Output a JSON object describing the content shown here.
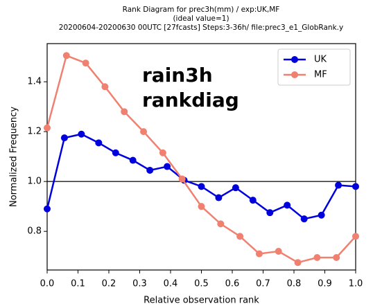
{
  "chart_data": {
    "type": "line",
    "title": [
      "Rank Diagram for prec3h(mm) / exp:UK,MF",
      "(ideal value=1)",
      "20200604-20200630 00UTC [27fcasts] Steps:3-36h/ file:prec3_e1_GlobRank.y"
    ],
    "annotation": [
      "rain3h",
      "rankdiag"
    ],
    "xlabel": "Relative observation rank",
    "ylabel": "Normalized Frequency",
    "xlim": [
      0,
      1
    ],
    "ylim": [
      0.645,
      1.553
    ],
    "xticks": [
      {
        "value": 0,
        "label": "0.0"
      },
      0.1,
      0.2,
      0.3,
      0.4,
      0.5,
      0.6,
      0.7,
      0.8,
      0.9,
      {
        "value": 1,
        "label": "1.0"
      }
    ],
    "yticks": [
      0.8,
      {
        "value": 1,
        "label": "1.0"
      },
      1.2,
      1.4
    ],
    "reference_line": 1,
    "legend": "upper right",
    "series": [
      {
        "name": "UK",
        "color": "#0000dd",
        "x": [
          0,
          0.056,
          0.111,
          0.167,
          0.222,
          0.278,
          0.333,
          0.389,
          0.444,
          0.5,
          0.556,
          0.611,
          0.667,
          0.722,
          0.778,
          0.833,
          0.889,
          0.944,
          1
        ],
        "values": [
          0.89,
          1.175,
          1.19,
          1.155,
          1.115,
          1.085,
          1.045,
          1.06,
          1.005,
          0.98,
          0.935,
          0.975,
          0.925,
          0.875,
          0.905,
          0.85,
          0.865,
          0.985,
          0.98
        ]
      },
      {
        "name": "MF",
        "color": "#f08070",
        "x": [
          0,
          0.0625,
          0.125,
          0.1875,
          0.25,
          0.3125,
          0.375,
          0.4375,
          0.5,
          0.5625,
          0.625,
          0.6875,
          0.75,
          0.8125,
          0.875,
          0.9375,
          1
        ],
        "values": [
          1.215,
          1.505,
          1.475,
          1.38,
          1.28,
          1.2,
          1.115,
          1.01,
          0.9,
          0.83,
          0.78,
          0.71,
          0.72,
          0.675,
          0.695,
          0.695,
          0.78
        ]
      }
    ]
  }
}
